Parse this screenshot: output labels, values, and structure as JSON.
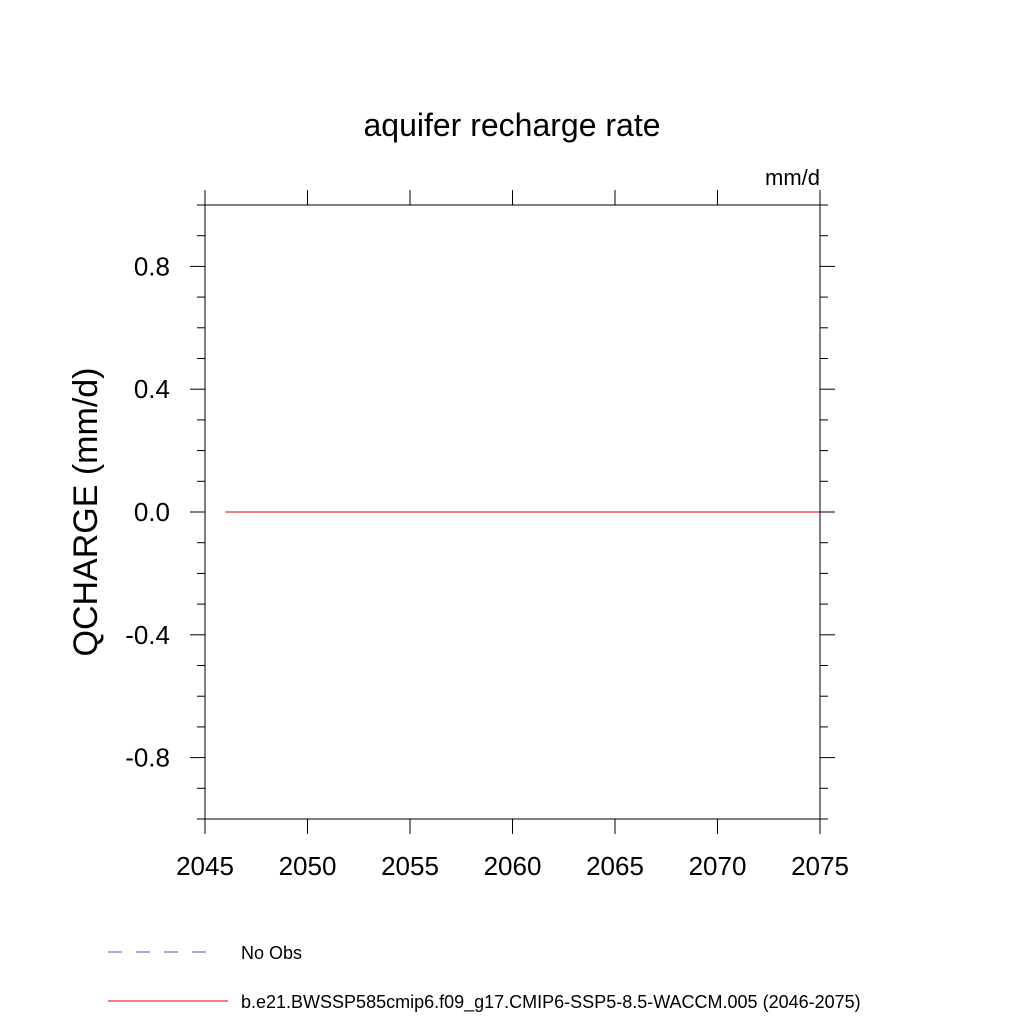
{
  "chart_data": {
    "type": "line",
    "title": "aquifer recharge rate",
    "units": "mm/d",
    "ylabel": "QCHARGE  (mm/d)",
    "xlabel": "",
    "xlim": [
      2045,
      2075
    ],
    "ylim": [
      -1.0,
      1.0
    ],
    "xticks": [
      2045,
      2050,
      2055,
      2060,
      2065,
      2070,
      2075
    ],
    "xtick_labels": [
      "2045",
      "2050",
      "2055",
      "2060",
      "2065",
      "2070",
      "2075"
    ],
    "yticks": [
      -0.8,
      -0.4,
      0.0,
      0.4,
      0.8
    ],
    "ytick_labels": [
      "-0.8",
      "-0.4",
      "0.0",
      "0.4",
      "0.8"
    ],
    "grid": false,
    "legend_position": "bottom-left",
    "series": [
      {
        "name": "No Obs",
        "color": "#7b6fd0",
        "dash": "dashed",
        "x": [],
        "y": []
      },
      {
        "name": "b.e21.BWSSP585cmip6.f09_g17.CMIP6-SSP5-8.5-WACCM.005 (2046-2075)",
        "color": "#e8323c",
        "dash": "solid",
        "x": [
          2046,
          2047,
          2048,
          2049,
          2050,
          2051,
          2052,
          2053,
          2054,
          2055,
          2056,
          2057,
          2058,
          2059,
          2060,
          2061,
          2062,
          2063,
          2064,
          2065,
          2066,
          2067,
          2068,
          2069,
          2070,
          2071,
          2072,
          2073,
          2074,
          2075
        ],
        "y": [
          0.0,
          0.0,
          0.0,
          0.0,
          0.0,
          0.0,
          0.0,
          0.0,
          0.0,
          0.0,
          0.0,
          0.0,
          0.0,
          0.0,
          0.0,
          0.0,
          0.0,
          0.0,
          0.0,
          0.0,
          0.0,
          0.0,
          0.0,
          0.0,
          0.0,
          0.0,
          0.0,
          0.0,
          0.0,
          0.0
        ]
      }
    ]
  }
}
